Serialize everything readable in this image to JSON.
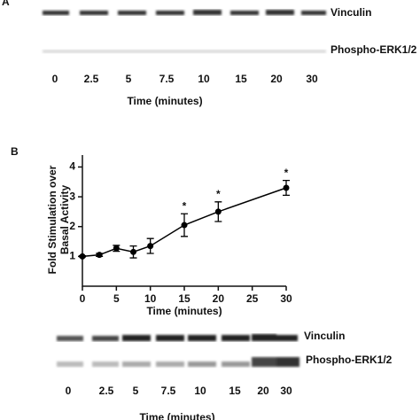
{
  "panel_a": {
    "label": "A",
    "blot_labels": [
      "Vinculin",
      "Phospho-ERK1/2"
    ],
    "lanes": [
      "0",
      "2.5",
      "5",
      "7.5",
      "10",
      "15",
      "20",
      "30"
    ],
    "axis_title": "Time (minutes)"
  },
  "chart_data": {
    "type": "line",
    "panel_label": "B",
    "x_label": "Time (minutes)",
    "y_label": [
      "Fold Stimulation over",
      "Basal Activity"
    ],
    "x": [
      0,
      2.5,
      5,
      7.5,
      10,
      15,
      20,
      30
    ],
    "series": [
      {
        "name": "Phospho-ERK1/2",
        "color": "#000000",
        "values": [
          1.0,
          1.05,
          1.27,
          1.15,
          1.35,
          2.05,
          2.5,
          3.3
        ],
        "errors": [
          0.02,
          0.05,
          0.1,
          0.2,
          0.25,
          0.38,
          0.33,
          0.25
        ]
      }
    ],
    "xlim": [
      0,
      30
    ],
    "xticks": [
      0,
      5,
      10,
      15,
      20,
      25,
      30
    ],
    "ylim": [
      0,
      4.4
    ],
    "yticks": [
      1,
      2,
      3,
      4
    ],
    "annotations": [
      {
        "x": 15,
        "text": "*"
      },
      {
        "x": 20,
        "text": "*"
      },
      {
        "x": 30,
        "text": "*"
      }
    ]
  },
  "panel_b_blot": {
    "blot_labels": [
      "Vinculin",
      "Phospho-ERK1/2"
    ],
    "lanes": [
      "0",
      "2.5",
      "5",
      "7.5",
      "10",
      "15",
      "20",
      "30"
    ],
    "axis_title": "Time (minutes)"
  }
}
